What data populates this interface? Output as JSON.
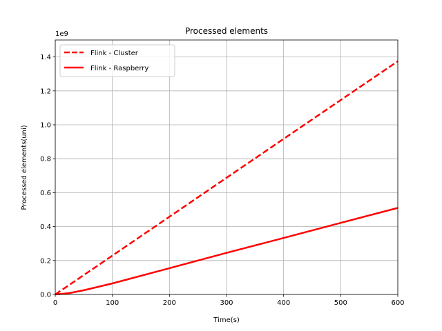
{
  "chart_data": {
    "type": "line",
    "title": "Processed elements",
    "xlabel": "Time(s)",
    "ylabel": "Processed elements(uni)",
    "y_offset_label": "1e9",
    "xlim": [
      0,
      600
    ],
    "ylim": [
      0,
      1.5
    ],
    "y_scale_factor": 1000000000,
    "x_ticks": [
      0,
      100,
      200,
      300,
      400,
      500,
      600
    ],
    "y_ticks": [
      0.0,
      0.2,
      0.4,
      0.6,
      0.8,
      1.0,
      1.2,
      1.4
    ],
    "x_tick_labels": [
      "0",
      "100",
      "200",
      "300",
      "400",
      "500",
      "600"
    ],
    "y_tick_labels": [
      "0.0",
      "0.2",
      "0.4",
      "0.6",
      "0.8",
      "1.0",
      "1.2",
      "1.4"
    ],
    "grid": true,
    "legend_position": "top-left",
    "series": [
      {
        "name": "Flink - Cluster",
        "color": "#ff0000",
        "style": "dashed",
        "x": [
          0,
          100,
          200,
          300,
          400,
          500,
          600
        ],
        "y": [
          0.0,
          0.229,
          0.458,
          0.688,
          0.917,
          1.146,
          1.375
        ]
      },
      {
        "name": "Flink - Raspberry",
        "color": "#ff0000",
        "style": "solid",
        "x": [
          0,
          25,
          50,
          100,
          200,
          300,
          400,
          500,
          600
        ],
        "y": [
          0.0,
          0.008,
          0.025,
          0.065,
          0.155,
          0.245,
          0.333,
          0.422,
          0.51
        ]
      }
    ]
  }
}
